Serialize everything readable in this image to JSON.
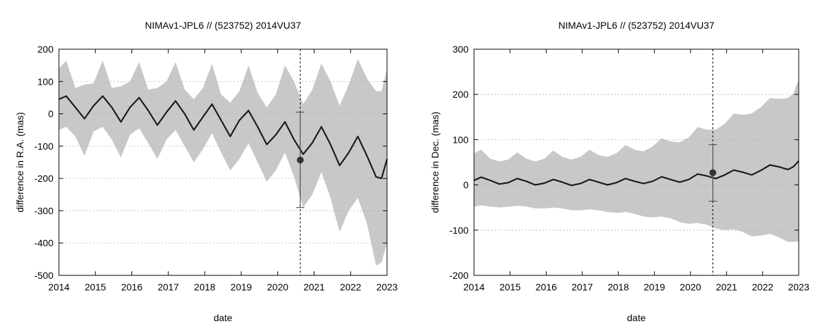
{
  "chart_data": [
    {
      "type": "line",
      "title": "NIMAv1-JPL6 // (523752) 2014VU37",
      "xlabel": "date",
      "ylabel": "difference in R.A. (mas)",
      "xlim": [
        2014,
        2023
      ],
      "ylim": [
        -500,
        200
      ],
      "x_ticks": [
        2014,
        2015,
        2016,
        2017,
        2018,
        2019,
        2020,
        2021,
        2022,
        2023
      ],
      "y_ticks": [
        -500,
        -400,
        -300,
        -200,
        -100,
        0,
        100,
        200
      ],
      "grid": "dotted",
      "colors": {
        "band": "#c8c8c8",
        "line": "#1a1a1a",
        "point": "#333333",
        "errorbar": "#555555"
      },
      "series": [
        {
          "kind": "nominal_curve",
          "x": [
            2014.0,
            2014.2,
            2014.45,
            2014.7,
            2014.95,
            2015.2,
            2015.45,
            2015.7,
            2015.95,
            2016.2,
            2016.45,
            2016.7,
            2016.95,
            2017.2,
            2017.45,
            2017.7,
            2017.95,
            2018.2,
            2018.45,
            2018.7,
            2018.95,
            2019.2,
            2019.45,
            2019.7,
            2019.95,
            2020.2,
            2020.45,
            2020.7,
            2020.95,
            2021.2,
            2021.45,
            2021.7,
            2021.95,
            2022.2,
            2022.45,
            2022.7,
            2022.85,
            2023.0
          ],
          "y": [
            45,
            55,
            20,
            -15,
            25,
            55,
            20,
            -25,
            20,
            50,
            10,
            -35,
            5,
            40,
            0,
            -50,
            -10,
            30,
            -20,
            -70,
            -20,
            10,
            -40,
            -95,
            -65,
            -25,
            -80,
            -125,
            -90,
            -40,
            -95,
            -160,
            -120,
            -70,
            -130,
            -195,
            -200,
            -140
          ]
        },
        {
          "kind": "uncertainty_band_upper",
          "x": [
            2014.0,
            2014.2,
            2014.45,
            2014.7,
            2014.95,
            2015.2,
            2015.45,
            2015.7,
            2015.95,
            2016.2,
            2016.45,
            2016.7,
            2016.95,
            2017.2,
            2017.45,
            2017.7,
            2017.95,
            2018.2,
            2018.45,
            2018.7,
            2018.95,
            2019.2,
            2019.45,
            2019.7,
            2019.95,
            2020.2,
            2020.45,
            2020.7,
            2020.95,
            2021.2,
            2021.45,
            2021.7,
            2021.95,
            2022.2,
            2022.45,
            2022.7,
            2022.85,
            2023.0
          ],
          "y": [
            140,
            165,
            80,
            90,
            95,
            165,
            80,
            85,
            100,
            160,
            75,
            80,
            100,
            160,
            75,
            45,
            80,
            155,
            60,
            35,
            70,
            150,
            65,
            20,
            60,
            150,
            100,
            30,
            75,
            155,
            100,
            25,
            90,
            170,
            110,
            70,
            70,
            140
          ]
        },
        {
          "kind": "uncertainty_band_lower",
          "x": [
            2014.0,
            2014.2,
            2014.45,
            2014.7,
            2014.95,
            2015.2,
            2015.45,
            2015.7,
            2015.95,
            2016.2,
            2016.45,
            2016.7,
            2016.95,
            2017.2,
            2017.45,
            2017.7,
            2017.95,
            2018.2,
            2018.45,
            2018.7,
            2018.95,
            2019.2,
            2019.45,
            2019.7,
            2019.95,
            2020.2,
            2020.45,
            2020.7,
            2020.95,
            2021.2,
            2021.45,
            2021.7,
            2021.95,
            2022.2,
            2022.45,
            2022.7,
            2022.85,
            2023.0
          ],
          "y": [
            -50,
            -40,
            -70,
            -130,
            -55,
            -40,
            -80,
            -135,
            -65,
            -45,
            -90,
            -140,
            -80,
            -50,
            -100,
            -150,
            -110,
            -60,
            -120,
            -175,
            -140,
            -90,
            -150,
            -210,
            -175,
            -120,
            -195,
            -290,
            -250,
            -180,
            -260,
            -365,
            -300,
            -260,
            -340,
            -470,
            -460,
            -400
          ]
        },
        {
          "kind": "observation",
          "x": [
            2020.62
          ],
          "y": [
            -143
          ],
          "err_low": [
            -290
          ],
          "err_high": [
            5
          ]
        }
      ],
      "vertical_marker_x": 2020.62
    },
    {
      "type": "line",
      "title": "NIMAv1-JPL6 // (523752) 2014VU37",
      "xlabel": "date",
      "ylabel": "difference in Dec. (mas)",
      "xlim": [
        2014,
        2023
      ],
      "ylim": [
        -200,
        300
      ],
      "x_ticks": [
        2014,
        2015,
        2016,
        2017,
        2018,
        2019,
        2020,
        2021,
        2022,
        2023
      ],
      "y_ticks": [
        -200,
        -100,
        0,
        100,
        200,
        300
      ],
      "grid": "dotted",
      "colors": {
        "band": "#c8c8c8",
        "line": "#1a1a1a",
        "point": "#333333",
        "errorbar": "#555555"
      },
      "series": [
        {
          "kind": "nominal_curve",
          "x": [
            2014.0,
            2014.2,
            2014.45,
            2014.7,
            2014.95,
            2015.2,
            2015.45,
            2015.7,
            2015.95,
            2016.2,
            2016.45,
            2016.7,
            2016.95,
            2017.2,
            2017.45,
            2017.7,
            2017.95,
            2018.2,
            2018.45,
            2018.7,
            2018.95,
            2019.2,
            2019.45,
            2019.7,
            2019.95,
            2020.2,
            2020.45,
            2020.7,
            2020.95,
            2021.2,
            2021.45,
            2021.7,
            2021.95,
            2022.2,
            2022.45,
            2022.7,
            2022.85,
            2023.0
          ],
          "y": [
            10,
            17,
            10,
            2,
            5,
            14,
            8,
            0,
            4,
            12,
            6,
            -1,
            3,
            12,
            6,
            0,
            5,
            14,
            8,
            3,
            8,
            18,
            12,
            6,
            12,
            24,
            20,
            14,
            22,
            33,
            28,
            22,
            32,
            44,
            40,
            34,
            40,
            53
          ]
        },
        {
          "kind": "uncertainty_band_upper",
          "x": [
            2014.0,
            2014.2,
            2014.45,
            2014.7,
            2014.95,
            2015.2,
            2015.45,
            2015.7,
            2015.95,
            2016.2,
            2016.45,
            2016.7,
            2016.95,
            2017.2,
            2017.45,
            2017.7,
            2017.95,
            2018.2,
            2018.45,
            2018.7,
            2018.95,
            2019.2,
            2019.45,
            2019.7,
            2019.95,
            2020.2,
            2020.45,
            2020.7,
            2020.95,
            2021.2,
            2021.45,
            2021.7,
            2021.95,
            2022.2,
            2022.45,
            2022.7,
            2022.85,
            2023.0
          ],
          "y": [
            70,
            78,
            58,
            52,
            56,
            72,
            58,
            52,
            58,
            76,
            62,
            56,
            62,
            78,
            66,
            62,
            70,
            88,
            78,
            74,
            85,
            103,
            96,
            94,
            105,
            128,
            122,
            122,
            135,
            158,
            155,
            158,
            172,
            192,
            190,
            192,
            202,
            233
          ]
        },
        {
          "kind": "uncertainty_band_lower",
          "x": [
            2014.0,
            2014.2,
            2014.45,
            2014.7,
            2014.95,
            2015.2,
            2015.45,
            2015.7,
            2015.95,
            2016.2,
            2016.45,
            2016.7,
            2016.95,
            2017.2,
            2017.45,
            2017.7,
            2017.95,
            2018.2,
            2018.45,
            2018.7,
            2018.95,
            2019.2,
            2019.45,
            2019.7,
            2019.95,
            2020.2,
            2020.45,
            2020.7,
            2020.95,
            2021.2,
            2021.45,
            2021.7,
            2021.95,
            2022.2,
            2022.45,
            2022.7,
            2022.85,
            2023.0
          ],
          "y": [
            -48,
            -45,
            -48,
            -50,
            -48,
            -46,
            -48,
            -52,
            -52,
            -50,
            -52,
            -56,
            -56,
            -54,
            -56,
            -60,
            -62,
            -60,
            -64,
            -70,
            -72,
            -70,
            -74,
            -82,
            -86,
            -84,
            -88,
            -96,
            -100,
            -98,
            -104,
            -114,
            -112,
            -108,
            -116,
            -126,
            -126,
            -125
          ]
        },
        {
          "kind": "observation",
          "x": [
            2020.62
          ],
          "y": [
            27
          ],
          "err_low": [
            -36
          ],
          "err_high": [
            89
          ]
        }
      ],
      "vertical_marker_x": 2020.62
    }
  ]
}
